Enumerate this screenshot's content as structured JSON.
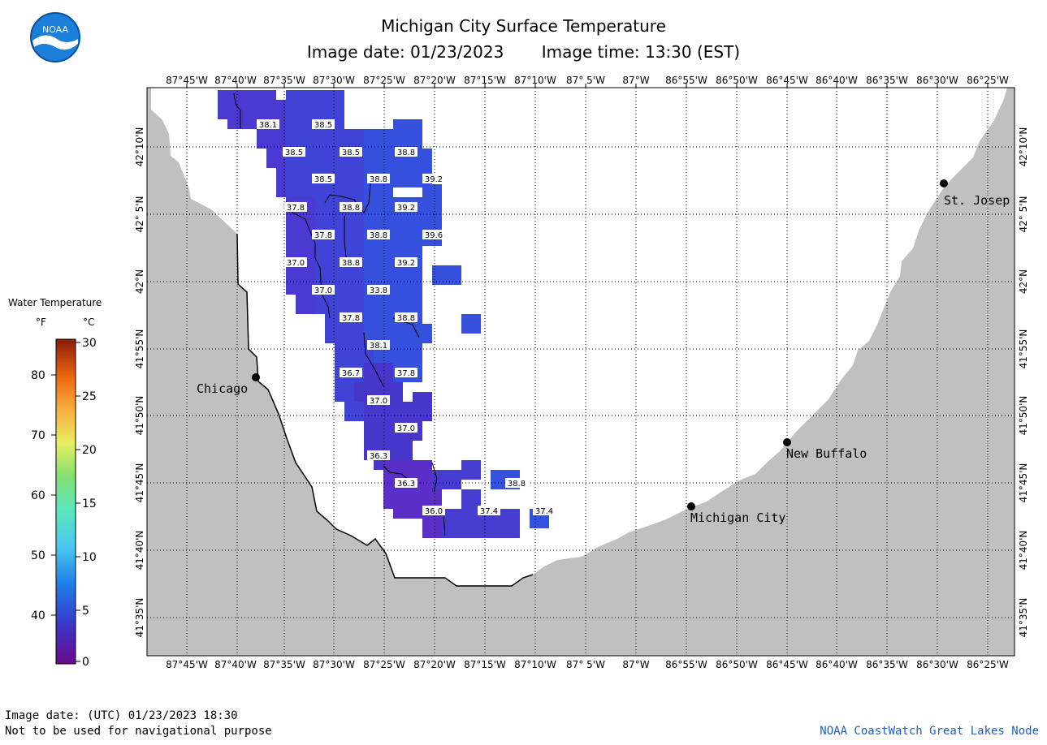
{
  "header": {
    "title": "Michigan City Surface Temperature",
    "image_date": "Image date: 01/23/2023",
    "image_time": "Image time: 13:30 (EST)"
  },
  "logo": {
    "text": "NOAA",
    "icon": "noaa-logo-icon"
  },
  "axes": {
    "lon_labels": [
      "87°45'W",
      "87°40'W",
      "87°35'W",
      "87°30'W",
      "87°25'W",
      "87°20'W",
      "87°15'W",
      "87°10'W",
      "87° 5'W",
      "87°W",
      "86°55'W",
      "86°50'W",
      "86°45'W",
      "86°40'W",
      "86°35'W",
      "86°30'W",
      "86°25'W"
    ],
    "lat_labels": [
      "42°10'N",
      "42° 5'N",
      "42°N",
      "41°55'N",
      "41°50'N",
      "41°45'N",
      "41°40'N",
      "41°35'N"
    ]
  },
  "legend": {
    "title": "Water Temperature",
    "unit_f": "°F",
    "unit_c": "°C",
    "f_ticks": [
      "80",
      "70",
      "60",
      "50",
      "40"
    ],
    "c_ticks": [
      "30",
      "25",
      "20",
      "15",
      "10",
      "5",
      "0"
    ]
  },
  "cities": [
    {
      "name": "Chicago"
    },
    {
      "name": "Michigan City"
    },
    {
      "name": "New Buffalo"
    },
    {
      "name": "St. Josep"
    }
  ],
  "temperature_labels": [
    "38.1",
    "38.5",
    "38.5",
    "38.5",
    "38.8",
    "38.5",
    "38.8",
    "39.2",
    "37.8",
    "38.8",
    "39.2",
    "37.8",
    "38.8",
    "39.6",
    "37.0",
    "38.8",
    "39.2",
    "37.0",
    "33.8",
    "37.8",
    "38.8",
    "38.1",
    "36.7",
    "37.8",
    "37.0",
    "37.0",
    "36.3",
    "36.3",
    "38.8",
    "36.0",
    "37.4",
    "37.4"
  ],
  "footer": {
    "utc_date": "Image date: (UTC) 01/23/2023  18:30",
    "disclaimer": "Not to be used for navigational purpose",
    "credit": "NOAA CoastWatch Great Lakes Node"
  },
  "colors": {
    "land": "#c0c0c0",
    "water": "#ffffff",
    "cold_pixel": "#5a2fc8",
    "mid_pixel": "#3b46d8",
    "warm_pixel": "#2856e0"
  }
}
